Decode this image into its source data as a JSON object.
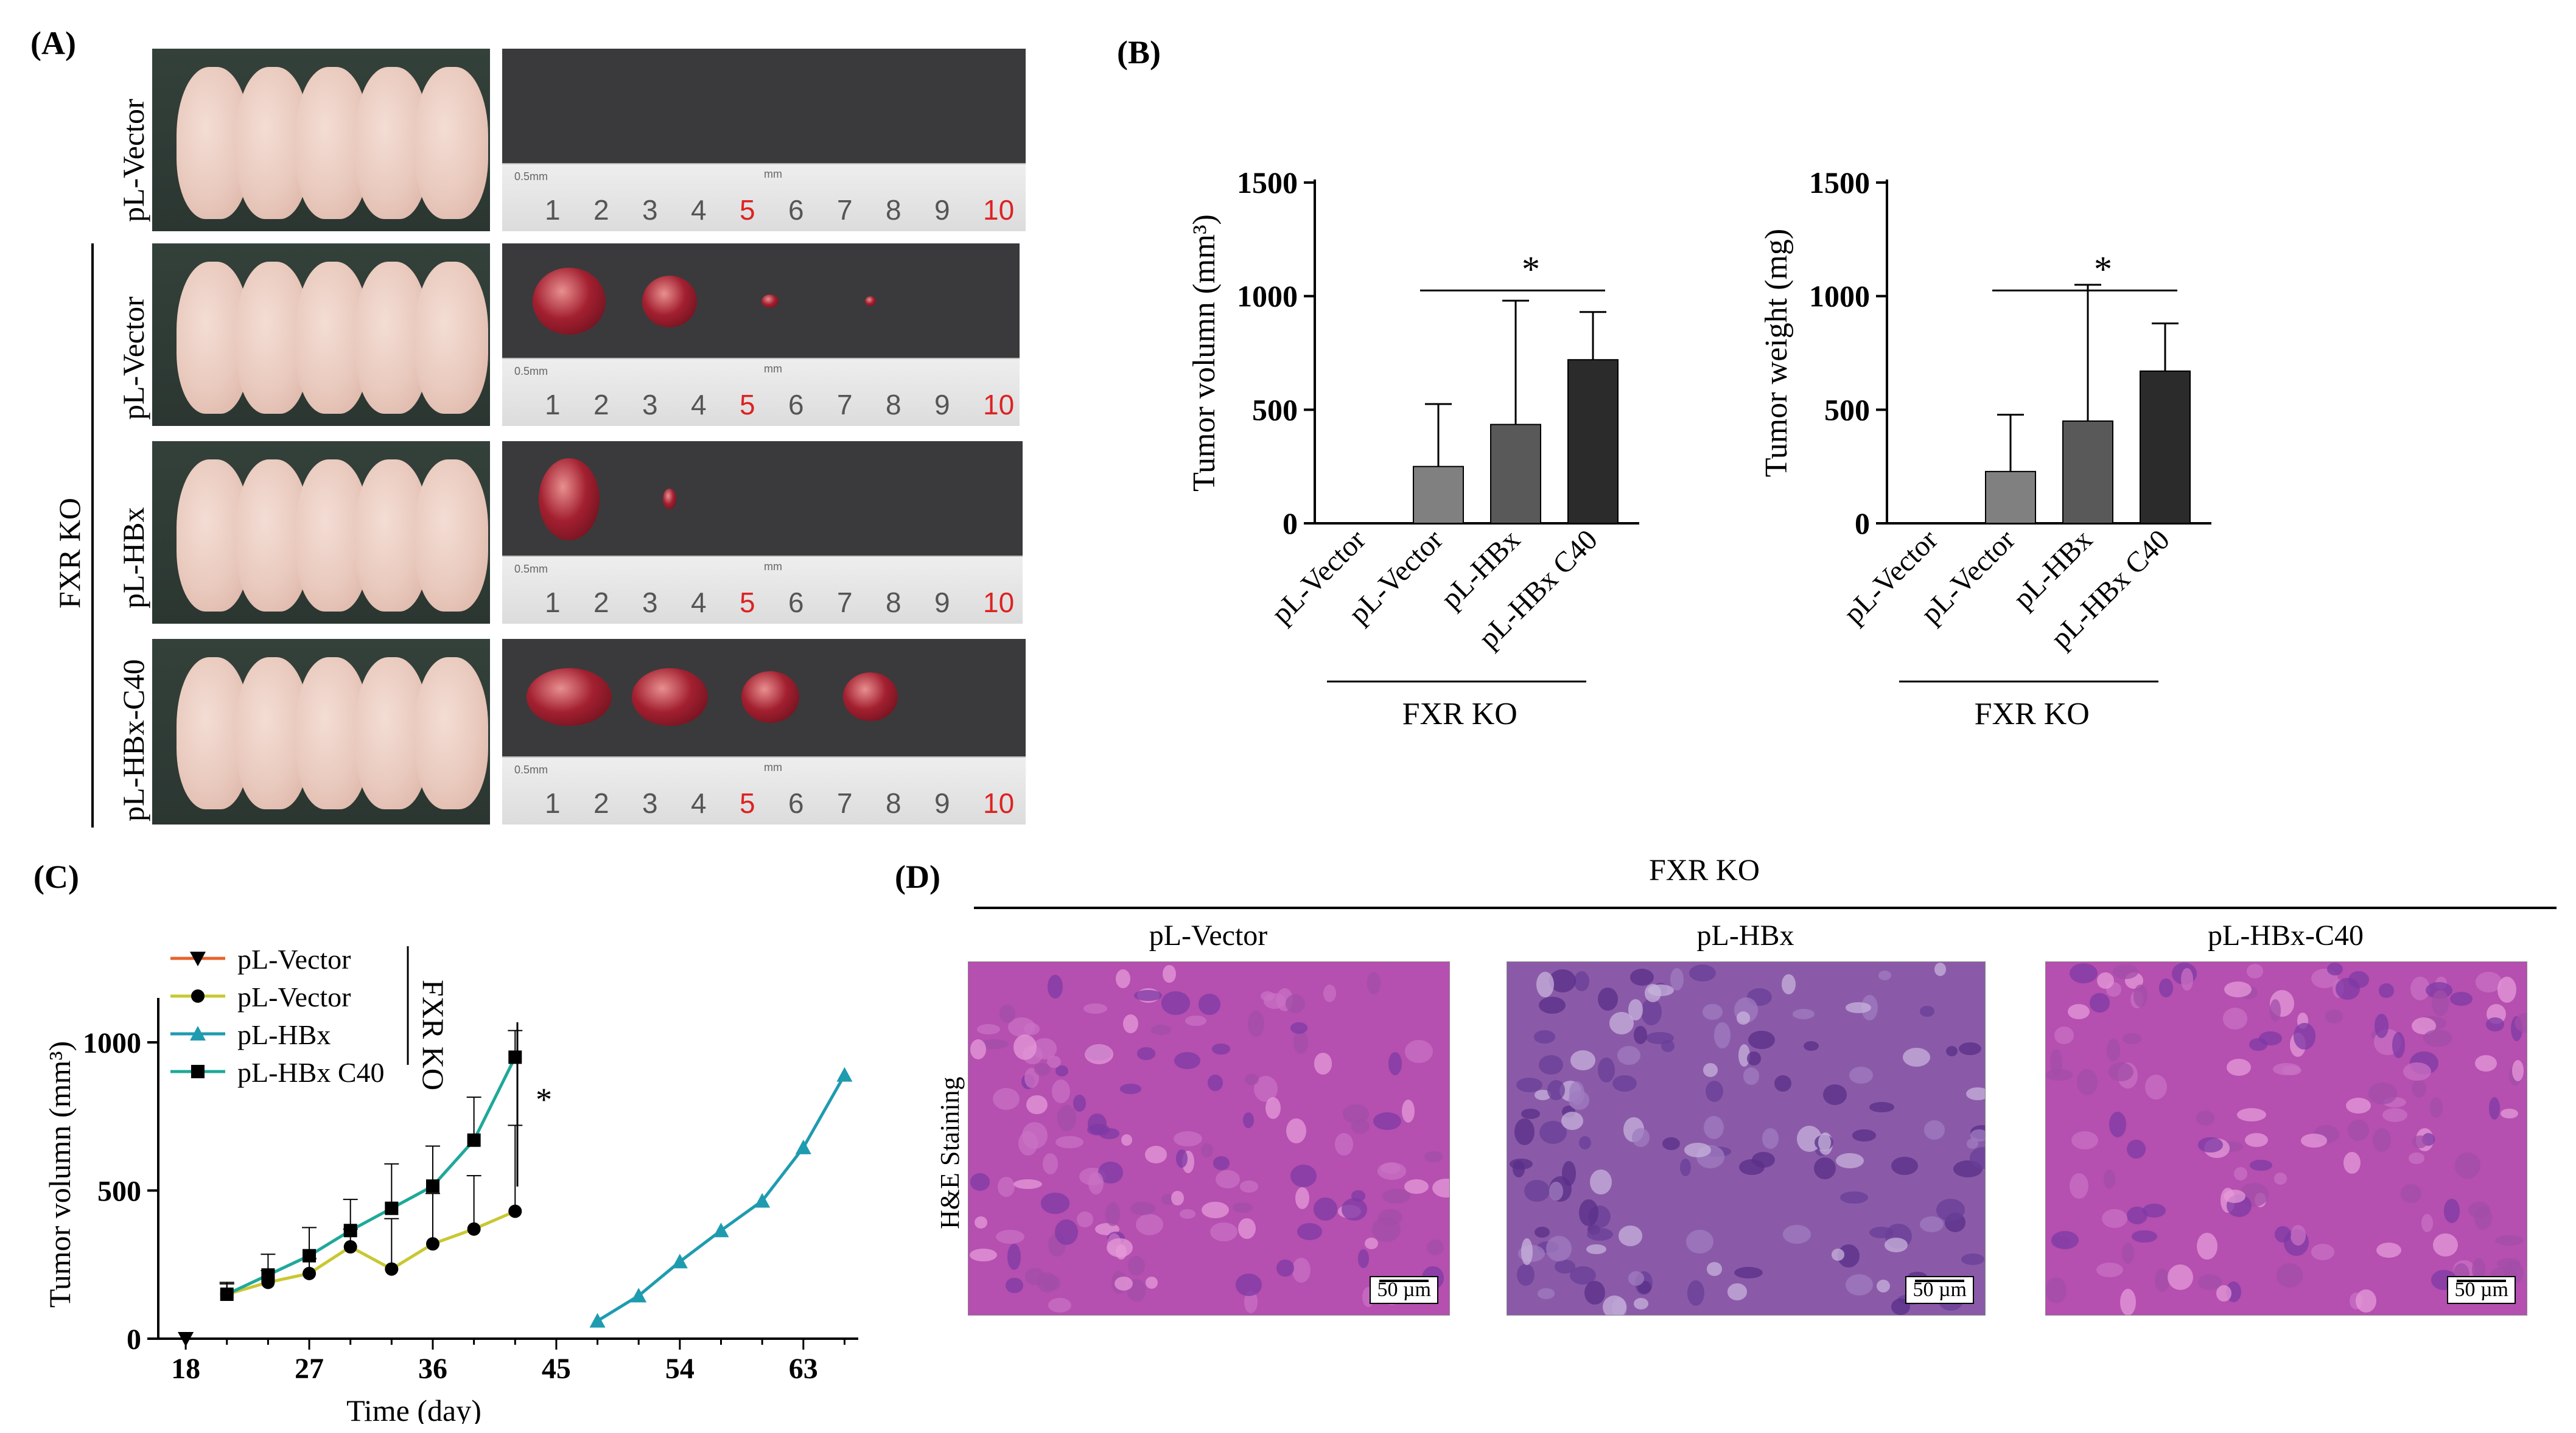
{
  "panels": {
    "a": "(A)",
    "b": "(B)",
    "c": "(C)",
    "d": "(D)"
  },
  "panel_a": {
    "rows": [
      "pL-Vector",
      "pL-Vector",
      "pL-HBx",
      "pL-HBx-C40"
    ],
    "group_label": "FXR KO",
    "ruler_numbers": [
      "1",
      "2",
      "3",
      "4",
      "5",
      "6",
      "7",
      "8",
      "9",
      "10"
    ],
    "ruler_scale": "0.5mm",
    "ruler_unit": "mm",
    "tumors_per_row": [
      0,
      4,
      2,
      4
    ]
  },
  "chart_data": [
    {
      "type": "bar",
      "ylabel": "Tumor volumn (mm³)",
      "categories": [
        "pL-Vector",
        "pL-Vector",
        "pL-HBx",
        "pL-HBx C40"
      ],
      "values": [
        0,
        250,
        435,
        720
      ],
      "errors": [
        0,
        275,
        545,
        210
      ],
      "colors": [
        "#808080",
        "#808080",
        "#595959",
        "#2b2b2b"
      ],
      "ylim": [
        0,
        1500
      ],
      "yticks": [
        "0",
        "500",
        "1000",
        "1500"
      ],
      "group_label": "FXR KO",
      "significance": "*"
    },
    {
      "type": "bar",
      "ylabel": "Tumor weight (mg)",
      "categories": [
        "pL-Vector",
        "pL-Vector",
        "pL-HBx",
        "pL-HBx C40"
      ],
      "values": [
        0,
        228,
        450,
        670
      ],
      "errors": [
        0,
        250,
        600,
        210
      ],
      "colors": [
        "#808080",
        "#808080",
        "#595959",
        "#2b2b2b"
      ],
      "ylim": [
        0,
        1500
      ],
      "yticks": [
        "0",
        "500",
        "1000",
        "1500"
      ],
      "group_label": "FXR KO",
      "significance": "*"
    },
    {
      "type": "line",
      "xlabel": "Time (day)",
      "ylabel": "Tumor volumn (mm³)",
      "xlim": [
        16,
        67
      ],
      "ylim": [
        0,
        1150
      ],
      "xticks": [
        "18",
        "27",
        "36",
        "45",
        "54",
        "63"
      ],
      "yticks": [
        "0",
        "500",
        "1000"
      ],
      "group_label": "FXR KO",
      "significance": "*",
      "series": [
        {
          "name": "pL-Vector",
          "color": "#e8622a",
          "marker": "triangle-down",
          "x": [
            18
          ],
          "y": [
            0
          ],
          "err": [
            0
          ]
        },
        {
          "name": "pL-Vector",
          "color": "#c8c832",
          "marker": "circle",
          "x": [
            21,
            24,
            27,
            30,
            33,
            36,
            39,
            42
          ],
          "y": [
            150,
            190,
            220,
            310,
            235,
            320,
            370,
            430
          ],
          "err": [
            35,
            40,
            50,
            60,
            170,
            170,
            180,
            290
          ]
        },
        {
          "name": "pL-HBx",
          "color": "#1f9bb0",
          "marker": "triangle",
          "x": [
            48,
            51,
            54,
            57,
            60,
            63,
            66
          ],
          "y": [
            60,
            145,
            260,
            365,
            465,
            645,
            890
          ],
          "err": [
            0,
            0,
            0,
            0,
            0,
            0,
            0
          ]
        },
        {
          "name": "pL-HBx C40",
          "color": "#1fa89a",
          "marker": "square",
          "x": [
            21,
            24,
            27,
            30,
            33,
            36,
            39,
            42
          ],
          "y": [
            150,
            215,
            280,
            365,
            440,
            515,
            670,
            950
          ],
          "err": [
            40,
            70,
            95,
            105,
            150,
            135,
            145,
            90
          ]
        }
      ]
    }
  ],
  "panel_d": {
    "group_label": "FXR KO",
    "row_label": "H&E Staining",
    "columns": [
      "pL-Vector",
      "pL-HBx",
      "pL-HBx-C40"
    ],
    "scale_bar": "50 µm"
  }
}
